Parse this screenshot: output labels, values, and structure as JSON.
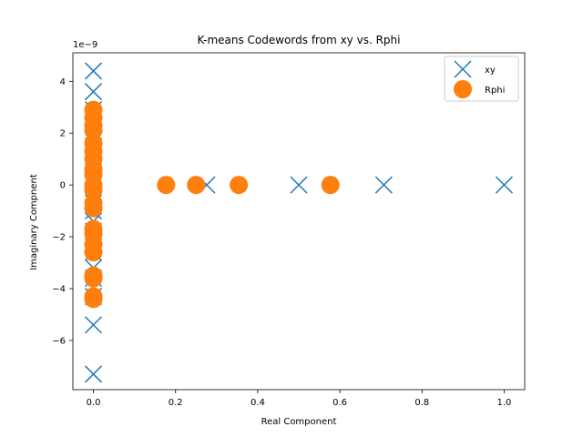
{
  "chart_data": {
    "type": "scatter",
    "title": "K-means Codewords from xy vs. Rphi",
    "xlabel": "Real Component",
    "ylabel": "Imaginary Compnent",
    "y_offset_text": "1e−9",
    "xlim": [
      -0.05,
      1.05
    ],
    "ylim": [
      -7.9,
      5.1
    ],
    "x_ticks": [
      0.0,
      0.2,
      0.4,
      0.6,
      0.8,
      1.0
    ],
    "x_tick_labels": [
      "0.0",
      "0.2",
      "0.4",
      "0.6",
      "0.8",
      "1.0"
    ],
    "y_ticks": [
      -6,
      -4,
      -2,
      0,
      2,
      4
    ],
    "y_tick_labels": [
      "−6",
      "−4",
      "−2",
      "0",
      "2",
      "4"
    ],
    "grid": false,
    "legend_position": "top-right",
    "series": [
      {
        "name": "xy",
        "marker": "x",
        "color": "#1f77b4",
        "points": [
          [
            0,
            4.4
          ],
          [
            0,
            3.6
          ],
          [
            0,
            2.9
          ],
          [
            0,
            2.3
          ],
          [
            0,
            1.9
          ],
          [
            0,
            1.5
          ],
          [
            0,
            1.1
          ],
          [
            0,
            0.7
          ],
          [
            0,
            0.4
          ],
          [
            0,
            0
          ],
          [
            0,
            -0.3
          ],
          [
            0,
            -0.7
          ],
          [
            0,
            -1.0
          ],
          [
            0,
            -1.4
          ],
          [
            0,
            -1.8
          ],
          [
            0,
            -2.2
          ],
          [
            0,
            -2.6
          ],
          [
            0,
            -3.2
          ],
          [
            0,
            -3.6
          ],
          [
            0,
            -4.3
          ],
          [
            0,
            -5.4
          ],
          [
            0,
            -7.3
          ],
          [
            0.276,
            0
          ],
          [
            0.5,
            0
          ],
          [
            0.707,
            0
          ],
          [
            1.0,
            0
          ]
        ]
      },
      {
        "name": "Rphi",
        "marker": "o",
        "color": "#ff7f0e",
        "points": [
          [
            0,
            2.9
          ],
          [
            0,
            2.6
          ],
          [
            0,
            2.3
          ],
          [
            0,
            2.1
          ],
          [
            0,
            1.6
          ],
          [
            0,
            1.3
          ],
          [
            0,
            1.0
          ],
          [
            0,
            0.6
          ],
          [
            0,
            0.4
          ],
          [
            0,
            0
          ],
          [
            0,
            -0.2
          ],
          [
            0,
            -0.7
          ],
          [
            0,
            -0.9
          ],
          [
            0,
            -1.7
          ],
          [
            0,
            -1.9
          ],
          [
            0,
            -2.3
          ],
          [
            0,
            -2.6
          ],
          [
            0,
            -3.5
          ],
          [
            0,
            -3.6
          ],
          [
            0,
            -4.3
          ],
          [
            0,
            -4.4
          ],
          [
            0.177,
            0
          ],
          [
            0.25,
            0
          ],
          [
            0.354,
            0
          ],
          [
            0.577,
            0
          ]
        ]
      }
    ]
  }
}
